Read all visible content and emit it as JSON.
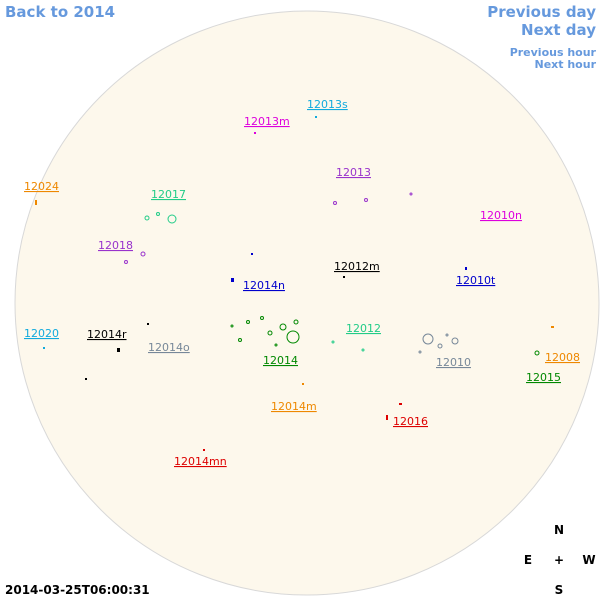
{
  "nav": {
    "back": "Back to 2014",
    "previous_day": "Previous day",
    "next_day": "Next day",
    "previous_hour": "Previous hour",
    "next_hour": "Next hour"
  },
  "timestamp": "2014-03-25T06:00:31",
  "compass": {
    "north": "N",
    "east": "E",
    "center": "+",
    "west": "W",
    "south": "S"
  },
  "regions": [
    {
      "label": "12013s",
      "color": "#11aadd"
    },
    {
      "label": "12013m",
      "color": "#dd00dd"
    },
    {
      "label": "12024",
      "color": "#ee8800"
    },
    {
      "label": "12017",
      "color": "#22cc88"
    },
    {
      "label": "12013",
      "color": "#9933cc"
    },
    {
      "label": "12010n",
      "color": "#dd00dd"
    },
    {
      "label": "12018",
      "color": "#9933cc"
    },
    {
      "label": "12012m",
      "color": "#000000"
    },
    {
      "label": "12014n",
      "color": "#0000cc"
    },
    {
      "label": "12010t",
      "color": "#0000cc"
    },
    {
      "label": "12020",
      "color": "#11aadd"
    },
    {
      "label": "12014r",
      "color": "#000000"
    },
    {
      "label": "12012",
      "color": "#22cc88"
    },
    {
      "label": "12014o",
      "color": "#778899"
    },
    {
      "label": "12010",
      "color": "#778899"
    },
    {
      "label": "12008",
      "color": "#ee8800"
    },
    {
      "label": "12014",
      "color": "#008800"
    },
    {
      "label": "12015",
      "color": "#008800"
    },
    {
      "label": "12014m",
      "color": "#ee8800"
    },
    {
      "label": "12016",
      "color": "#dd0000"
    },
    {
      "label": "12014mn",
      "color": "#dd0000"
    }
  ]
}
